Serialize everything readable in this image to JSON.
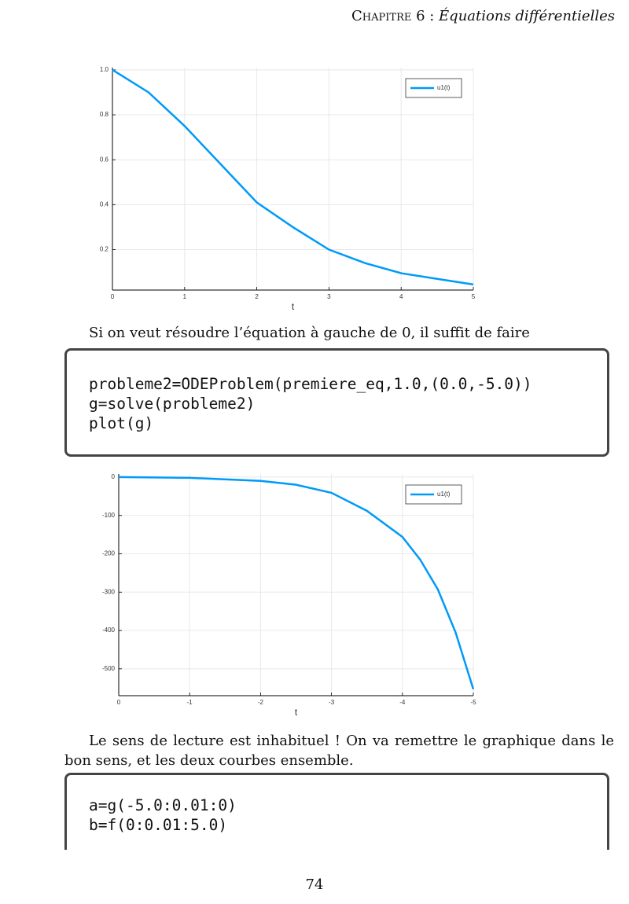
{
  "header": {
    "chapter": "Chapitre 6 :",
    "title": "Équations différentielles"
  },
  "charts": [
    {
      "type": "line",
      "xlabel": "t",
      "legend": "top right",
      "grid": true,
      "x": [
        0,
        0.5,
        1,
        1.5,
        2,
        2.5,
        3,
        3.5,
        4,
        4.5,
        5
      ],
      "series": [
        {
          "name": "u1(t)",
          "color": "#009af9",
          "values": [
            1.0,
            0.9,
            0.75,
            0.58,
            0.41,
            0.3,
            0.2,
            0.14,
            0.095,
            0.07,
            0.045
          ]
        }
      ],
      "xlim": [
        0,
        5
      ],
      "xticks": [
        0,
        1,
        2,
        3,
        4,
        5
      ],
      "ylim": [
        0.02,
        1.01
      ],
      "yticks": [
        0.2,
        0.4,
        0.6,
        0.8,
        {
          "value": 1.0,
          "label": "1.0"
        }
      ]
    },
    {
      "type": "line",
      "xlabel": "t",
      "legend": "top right",
      "grid": true,
      "x": [
        0,
        -1,
        -2,
        -2.5,
        -3,
        -3.5,
        -4,
        -4.25,
        -4.5,
        -4.75,
        -5
      ],
      "series": [
        {
          "name": "u1(t)",
          "color": "#009af9",
          "values": [
            0,
            -2,
            -10,
            -20,
            -41,
            -88,
            -156,
            -215,
            -293,
            -405,
            -553
          ]
        }
      ],
      "xlim": [
        0,
        -5
      ],
      "xticks": [
        0,
        -1,
        -2,
        -3,
        -4,
        -5
      ],
      "ylim": [
        -570,
        8
      ],
      "yticks": [
        0,
        -100,
        -200,
        -300,
        -400,
        -500
      ]
    }
  ],
  "paragraphs": [
    "Si on veut résoudre l’équation à gauche de 0, il suffit de faire",
    "Le sens de lecture est inhabituel ! On va remettre le graphique dans le bon sens, et les deux courbes ensemble."
  ],
  "code": [
    [
      "probleme2=ODEProblem(premiere_eq,1.0,(0.0,-5.0))",
      "g=solve(probleme2)",
      "plot(g)"
    ],
    [
      "a=g(-5.0:0.01:0)",
      "b=f(0:0.01:5.0)"
    ]
  ],
  "page_number": "74"
}
